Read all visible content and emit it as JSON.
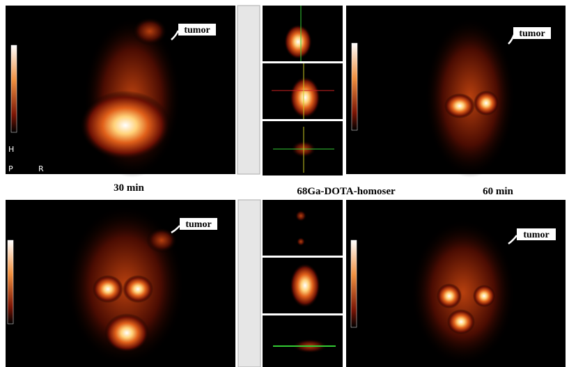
{
  "captions": [
    "30 min",
    "68Ga-DOTA-homoser",
    "60 min"
  ],
  "annotations": [
    "tumor",
    "tumor",
    "tumor",
    "tumor"
  ],
  "orientation": {
    "posterior": "P",
    "right": "R",
    "head": "H"
  }
}
